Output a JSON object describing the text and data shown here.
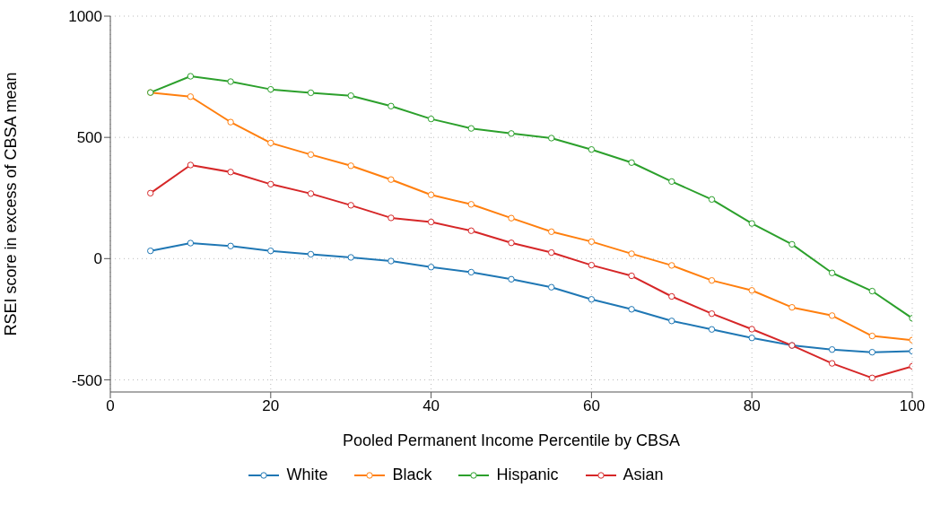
{
  "chart_data": {
    "type": "line",
    "xlabel": "Pooled Permanent Income Percentile by CBSA",
    "ylabel": "RSEI score in excess of CBSA mean",
    "x": [
      5,
      10,
      15,
      20,
      25,
      30,
      35,
      40,
      45,
      50,
      55,
      60,
      65,
      70,
      75,
      80,
      85,
      90,
      95,
      100
    ],
    "series": [
      {
        "name": "White",
        "color": "#1f77b4",
        "values": [
          32,
          64,
          52,
          32,
          18,
          5,
          -10,
          -35,
          -56,
          -85,
          -118,
          -168,
          -209,
          -257,
          -292,
          -327,
          -358,
          -375,
          -386,
          -382
        ]
      },
      {
        "name": "Black",
        "color": "#ff7f0e",
        "values": [
          685,
          668,
          563,
          477,
          429,
          383,
          326,
          263,
          224,
          167,
          111,
          70,
          20,
          -28,
          -90,
          -131,
          -201,
          -235,
          -319,
          -336
        ]
      },
      {
        "name": "Hispanic",
        "color": "#2ca02c",
        "values": [
          685,
          752,
          730,
          698,
          684,
          672,
          629,
          576,
          537,
          516,
          497,
          450,
          396,
          318,
          244,
          145,
          59,
          -59,
          -134,
          -246
        ]
      },
      {
        "name": "Asian",
        "color": "#d62728",
        "values": [
          270,
          386,
          357,
          307,
          268,
          220,
          168,
          151,
          115,
          65,
          25,
          -27,
          -71,
          -156,
          -227,
          -291,
          -358,
          -432,
          -492,
          -444
        ]
      }
    ],
    "xlim": [
      0,
      100
    ],
    "xticks": [
      0,
      20,
      40,
      60,
      80,
      100
    ],
    "ylim": [
      -550,
      1000
    ],
    "yticks": [
      -500,
      0,
      500,
      1000
    ],
    "grid": true,
    "legend": "bottom",
    "marker": "circle",
    "line_style": "solid"
  }
}
